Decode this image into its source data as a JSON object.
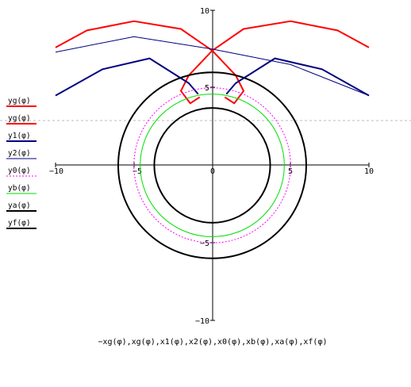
{
  "chart_data": {
    "type": "line",
    "title": "",
    "xlabel": "−xg(φ),xg(φ),x1(φ),x2(φ),x0(φ),xb(φ),xa(φ),xf(φ)",
    "ylabel": "",
    "xlim": [
      -10,
      10
    ],
    "ylim": [
      -10,
      10
    ],
    "x_ticks": [
      "−10",
      "−5",
      "0",
      "5",
      "10"
    ],
    "y_ticks": [
      "10",
      "5",
      "−5",
      "−10"
    ],
    "grid": false,
    "legend_position": "left",
    "series": [
      {
        "name": "yg(φ)",
        "color": "#ff0000",
        "style": "solid",
        "width": 2,
        "description_points": [
          [
            -10,
            7.6
          ],
          [
            -8,
            8.7
          ],
          [
            -5,
            9.3
          ],
          [
            -2,
            8.8
          ],
          [
            0,
            7.4
          ],
          [
            1.5,
            5.8
          ],
          [
            2.0,
            4.8
          ],
          [
            1.4,
            4.0
          ],
          [
            0.8,
            4.4
          ]
        ]
      },
      {
        "name": "yg(φ)",
        "color": "#ff0000",
        "style": "solid",
        "width": 2,
        "description_points": [
          [
            10,
            7.6
          ],
          [
            8,
            8.7
          ],
          [
            5,
            9.3
          ],
          [
            2,
            8.8
          ],
          [
            0,
            7.4
          ],
          [
            -1.5,
            5.8
          ],
          [
            -2.0,
            4.8
          ],
          [
            -1.4,
            4.0
          ],
          [
            -0.8,
            4.4
          ]
        ]
      },
      {
        "name": "y1(φ)",
        "color": "#000080",
        "style": "solid",
        "width": 2,
        "description_points": [
          [
            -10,
            4.5
          ],
          [
            -7,
            6.2
          ],
          [
            -4,
            6.9
          ],
          [
            -1.5,
            5.3
          ],
          [
            -0.9,
            4.6
          ]
        ]
      },
      {
        "name": "y2(φ)",
        "color": "#000080",
        "style": "solid",
        "width": 1,
        "description_points": [
          [
            -10,
            7.3
          ],
          [
            -5,
            8.3
          ],
          [
            0,
            7.5
          ],
          [
            5,
            6.5
          ],
          [
            10,
            4.5
          ]
        ]
      },
      {
        "name": "y0(φ)",
        "color": "#ff00ff",
        "style": "dotted",
        "width": 1,
        "radius": 5
      },
      {
        "name": "yb(φ)",
        "color": "#00dd00",
        "style": "solid",
        "width": 1,
        "radius": 4.6
      },
      {
        "name": "ya(φ)",
        "color": "#000000",
        "style": "solid",
        "width": 2,
        "radius": 6
      },
      {
        "name": "yf(φ)",
        "color": "#000000",
        "style": "solid",
        "width": 2,
        "radius": 3.7
      }
    ]
  }
}
